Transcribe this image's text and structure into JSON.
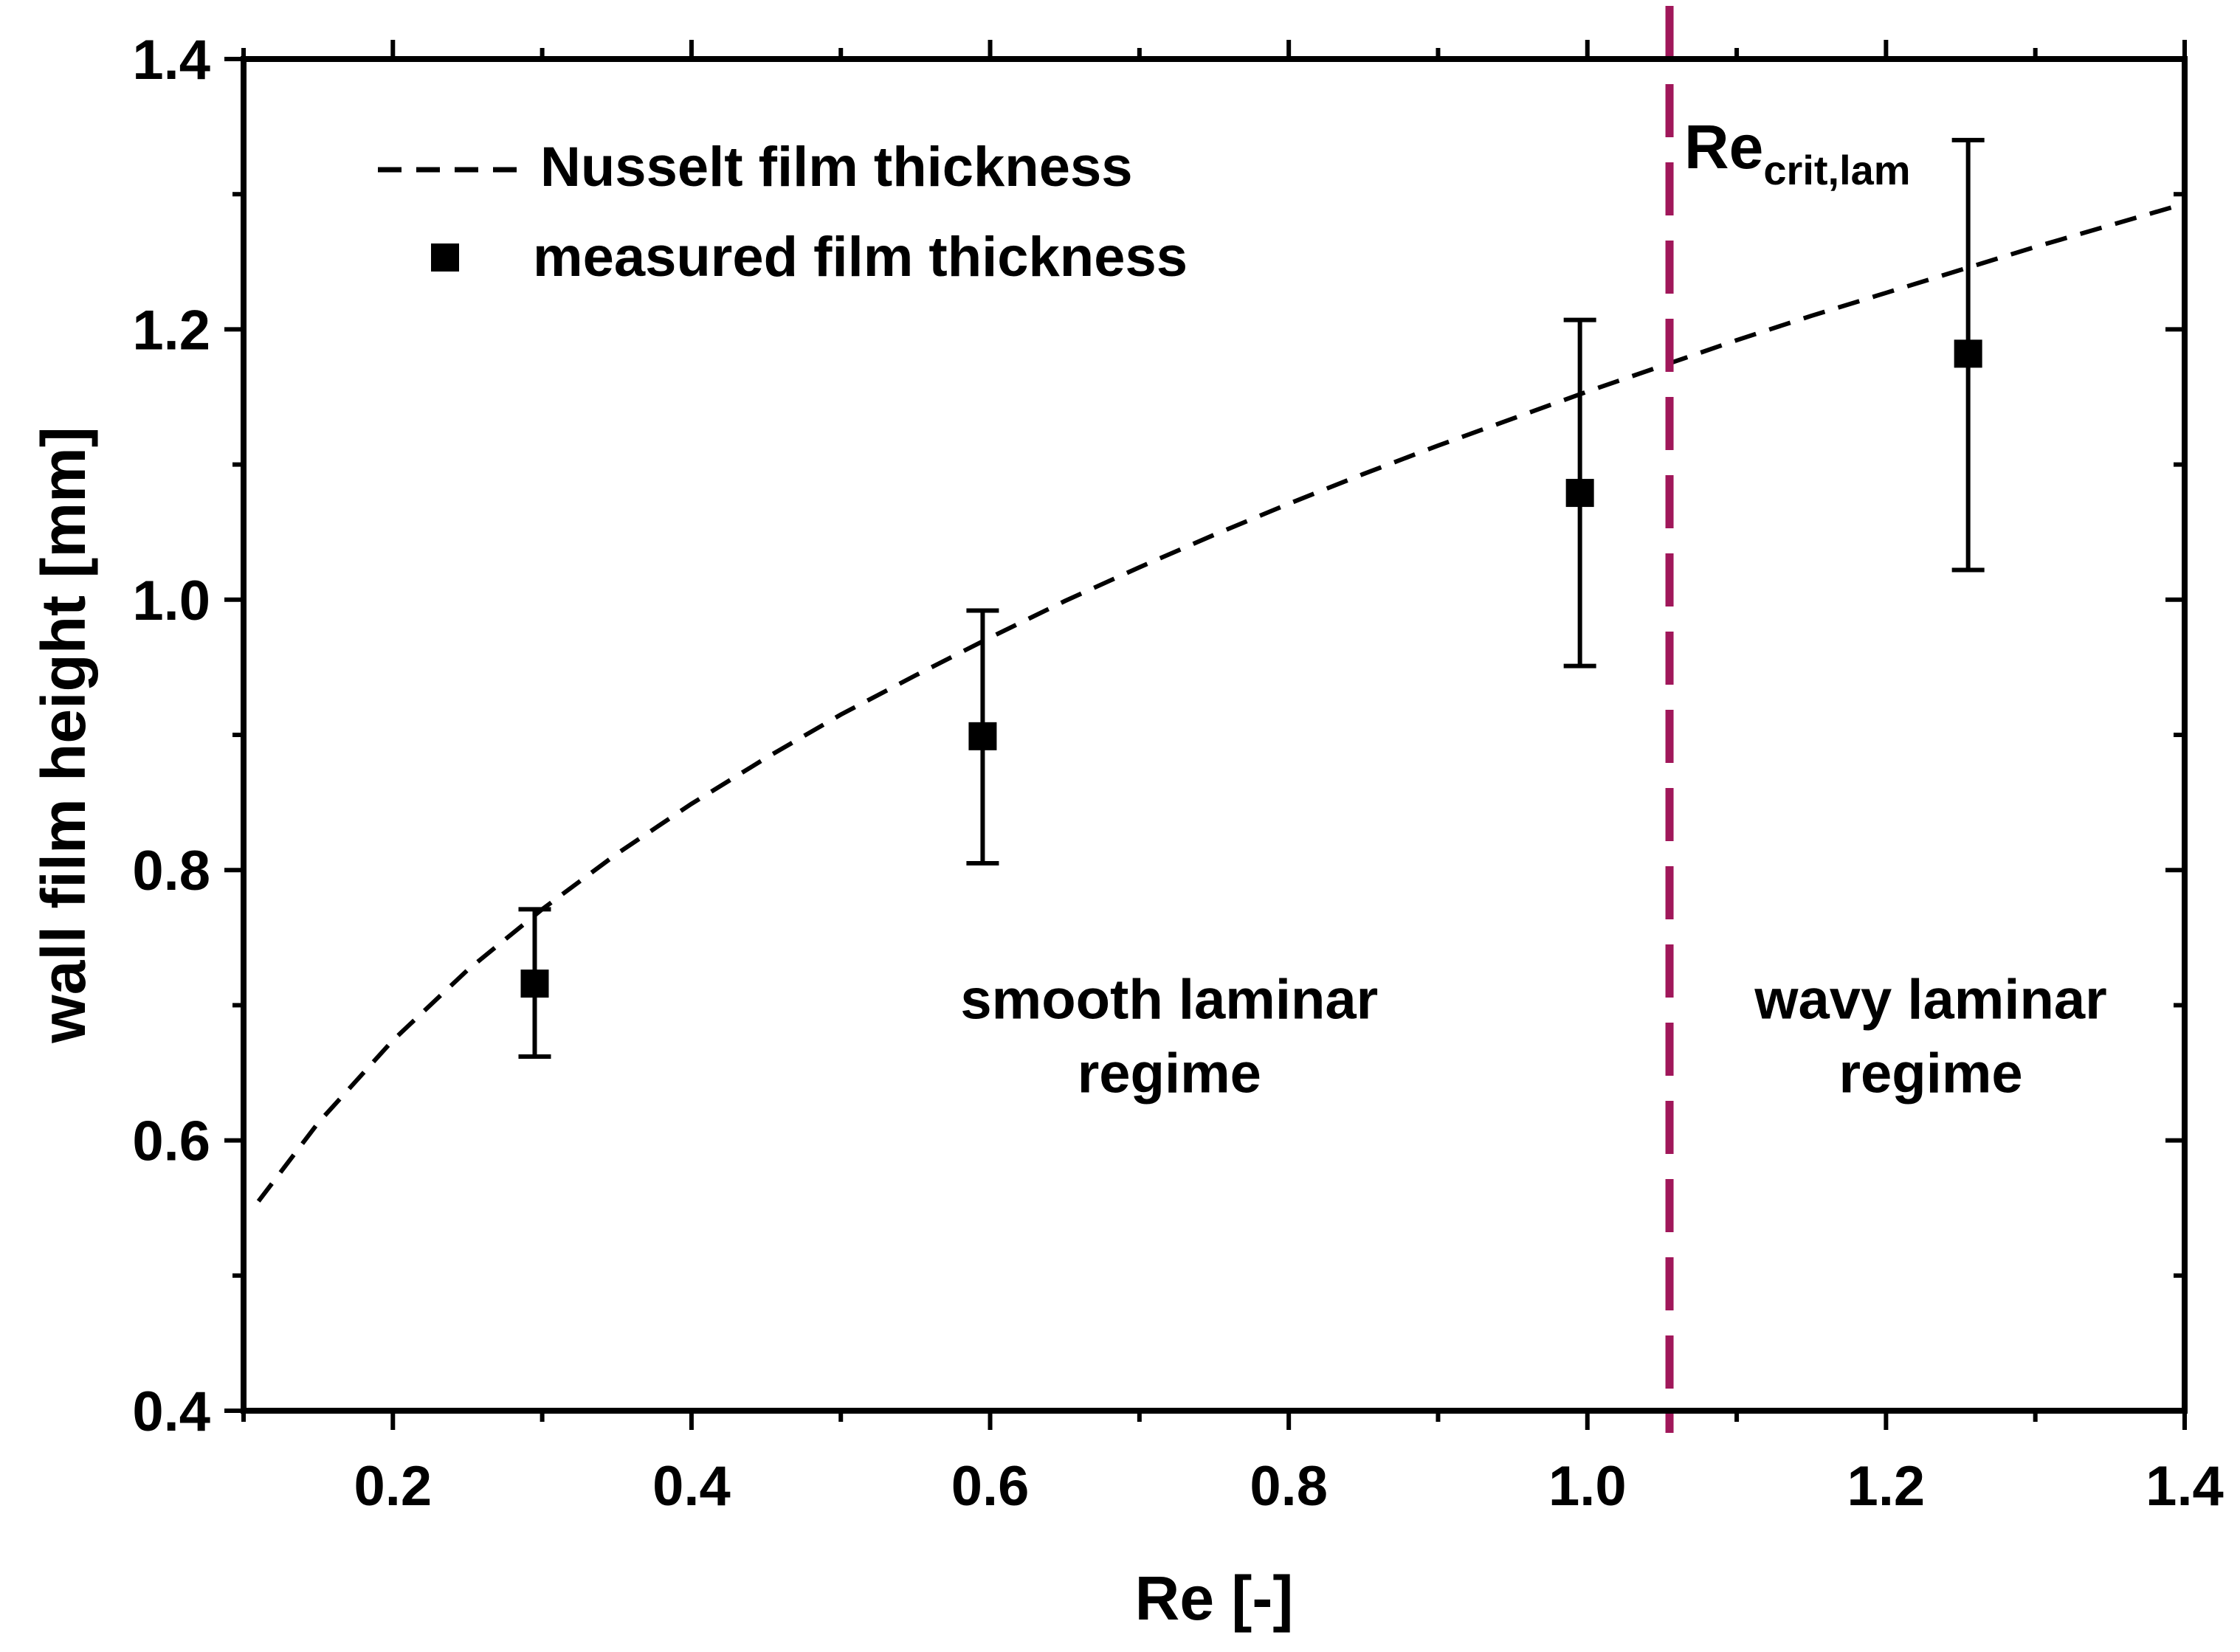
{
  "chart_data": {
    "type": "scatter",
    "title": "",
    "xlabel": "Re [-]",
    "ylabel": "wall film height [mm]",
    "xlim": [
      0.1,
      1.4
    ],
    "ylim": [
      0.4,
      1.4
    ],
    "x_ticks": [
      "0.2",
      "0.4",
      "0.6",
      "0.8",
      "1.0",
      "1.2",
      "1.4"
    ],
    "y_ticks": [
      "0.4",
      "0.6",
      "0.8",
      "1.0",
      "1.2",
      "1.4"
    ],
    "grid": false,
    "legend_position": "top-left",
    "series": [
      {
        "name": "Nusselt film thickness",
        "kind": "line",
        "style": "dashed",
        "color": "#000000",
        "x": [
          0.11,
          0.15,
          0.2,
          0.25,
          0.3,
          0.35,
          0.4,
          0.45,
          0.5,
          0.55,
          0.6,
          0.65,
          0.7,
          0.75,
          0.8,
          0.85,
          0.9,
          0.95,
          1.0,
          1.05,
          1.1,
          1.15,
          1.2,
          1.25,
          1.3,
          1.35,
          1.4
        ],
        "y": [
          0.555,
          0.613,
          0.674,
          0.726,
          0.771,
          0.812,
          0.849,
          0.883,
          0.915,
          0.944,
          0.972,
          0.999,
          1.024,
          1.048,
          1.071,
          1.093,
          1.114,
          1.134,
          1.154,
          1.173,
          1.192,
          1.21,
          1.227,
          1.244,
          1.261,
          1.277,
          1.293
        ]
      },
      {
        "name": "measured film thickness",
        "kind": "scatter",
        "marker": "square",
        "color": "#000000",
        "x": [
          0.295,
          0.595,
          0.995,
          1.255
        ],
        "y": [
          0.716,
          0.899,
          1.079,
          1.182
        ],
        "y_err_low": [
          0.662,
          0.805,
          0.951,
          1.022
        ],
        "y_err_high": [
          0.771,
          0.992,
          1.207,
          1.34
        ]
      }
    ],
    "critical_line": {
      "x": 1.055,
      "color": "#a0175a",
      "label": "Re",
      "label_subscript": "crit,lam"
    },
    "annotations": [
      {
        "lines": [
          "smooth laminar",
          "regime"
        ],
        "x": 0.72,
        "y": 0.69
      },
      {
        "lines": [
          "wavy laminar",
          "regime"
        ],
        "x": 1.23,
        "y": 0.69
      }
    ]
  }
}
